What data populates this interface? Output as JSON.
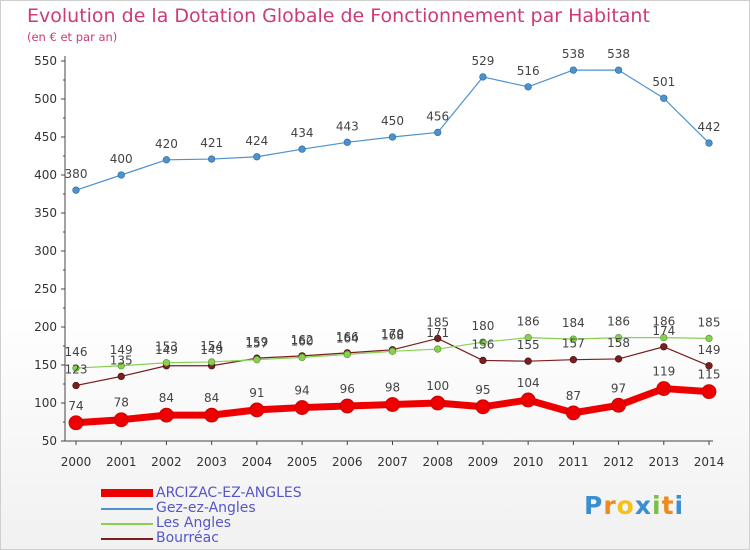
{
  "header": {
    "title": "Evolution de la Dotation Globale de Fonctionnement par Habitant",
    "subtitle": "(en € et par an)"
  },
  "logo": {
    "text": "Proxiti",
    "letters": [
      "P",
      "r",
      "o",
      "x",
      "i",
      "t",
      "i"
    ],
    "colors": [
      "#3a8fd0",
      "#f08a1c",
      "#f2c21a",
      "#3a8fd0",
      "#7bc043",
      "#f08a1c",
      "#3a8fd0"
    ]
  },
  "chart_data": {
    "type": "line",
    "x": [
      "2000",
      "2001",
      "2002",
      "2003",
      "2004",
      "2005",
      "2006",
      "2007",
      "2008",
      "2009",
      "2010",
      "2011",
      "2012",
      "2013",
      "2014"
    ],
    "ylim": [
      50,
      550
    ],
    "yticks": [
      50,
      100,
      150,
      200,
      250,
      300,
      350,
      400,
      450,
      500,
      550
    ],
    "grid": false,
    "legend_position": "bottom-left",
    "series": [
      {
        "name": "ARCIZAC-EZ-ANGLES",
        "color": "#ee0000",
        "values": [
          74,
          78,
          84,
          84,
          91,
          94,
          96,
          98,
          100,
          95,
          104,
          87,
          97,
          119,
          115
        ],
        "labels": [
          "74",
          "78",
          "84",
          "84",
          "91",
          "94",
          "96",
          "98",
          "100",
          "95",
          "104",
          "87",
          "97",
          "119",
          "115"
        ]
      },
      {
        "name": "Gez-ez-Angles",
        "color": "#4d92cf",
        "values": [
          380,
          400,
          420,
          421,
          424,
          434,
          443,
          450,
          456,
          529,
          516,
          538,
          538,
          501,
          442
        ],
        "labels": [
          "380",
          "400",
          "420",
          "421",
          "424",
          "434",
          "443",
          "450",
          "456",
          "529",
          "516",
          "538",
          "538",
          "501",
          "442"
        ]
      },
      {
        "name": "Les Angles",
        "color": "#88d052",
        "values": [
          146,
          149,
          153,
          154,
          157,
          160,
          164,
          168,
          171,
          180,
          186,
          184,
          186,
          186,
          185
        ],
        "labels": [
          "146",
          "149",
          "153",
          "154",
          "157",
          "160",
          "164",
          "168",
          "171",
          "180",
          "186",
          "184",
          "186",
          "186",
          "185"
        ]
      },
      {
        "name": "Bourréac",
        "color": "#7a1f1f",
        "values": [
          123,
          135,
          149,
          149,
          159,
          162,
          166,
          170,
          185,
          156,
          155,
          157,
          158,
          174,
          149
        ],
        "labels": [
          "123",
          "135",
          "149",
          "149",
          "159",
          "162",
          "166",
          "170",
          "185",
          "156",
          "155",
          "157",
          "158",
          "174",
          "149"
        ]
      }
    ]
  }
}
